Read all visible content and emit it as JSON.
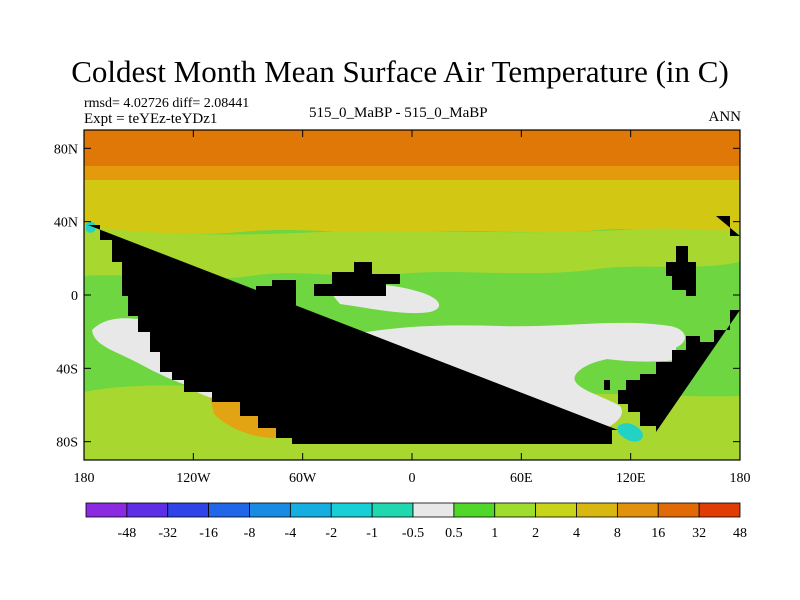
{
  "title": "Coldest Month Mean Surface Air Temperature (in C)",
  "stats": "rmsd= 4.02726 diff= 2.08441",
  "experiment": "Expt = teYEz-teYDz1",
  "comparison": "515_0_MaBP - 515_0_MaBP",
  "season": "ANN",
  "axes": {
    "y_ticks": [
      "80N",
      "40N",
      "0",
      "40S",
      "80S"
    ],
    "x_ticks": [
      "180",
      "120W",
      "60W",
      "0",
      "60E",
      "120E",
      "180"
    ]
  },
  "legend": {
    "labels": [
      "-48",
      "-32",
      "-16",
      "-8",
      "-4",
      "-2",
      "-1",
      "-0.5",
      "0.5",
      "1",
      "2",
      "4",
      "8",
      "16",
      "32",
      "48"
    ],
    "colors": [
      "#8a2be2",
      "#5d2ee6",
      "#2f44e8",
      "#1f66e8",
      "#1a8be3",
      "#14aee0",
      "#18cfd8",
      "#20d8b0",
      "#e8e8e8",
      "#4fd82a",
      "#9edc2e",
      "#c8d41a",
      "#d8b810",
      "#e0920c",
      "#e26a06",
      "#e03c04"
    ]
  },
  "palette": {
    "polar": "#e07808",
    "high_lat": "#e49a0c",
    "mid_lat": "#d2c814",
    "subtropic": "#a8d830",
    "tropic_green": "#6ed640",
    "near_zero": "#e8e8e8",
    "cold_patch": "#22d2c4",
    "warm_patch": "#e2a412",
    "coast_line": "#000000"
  }
}
